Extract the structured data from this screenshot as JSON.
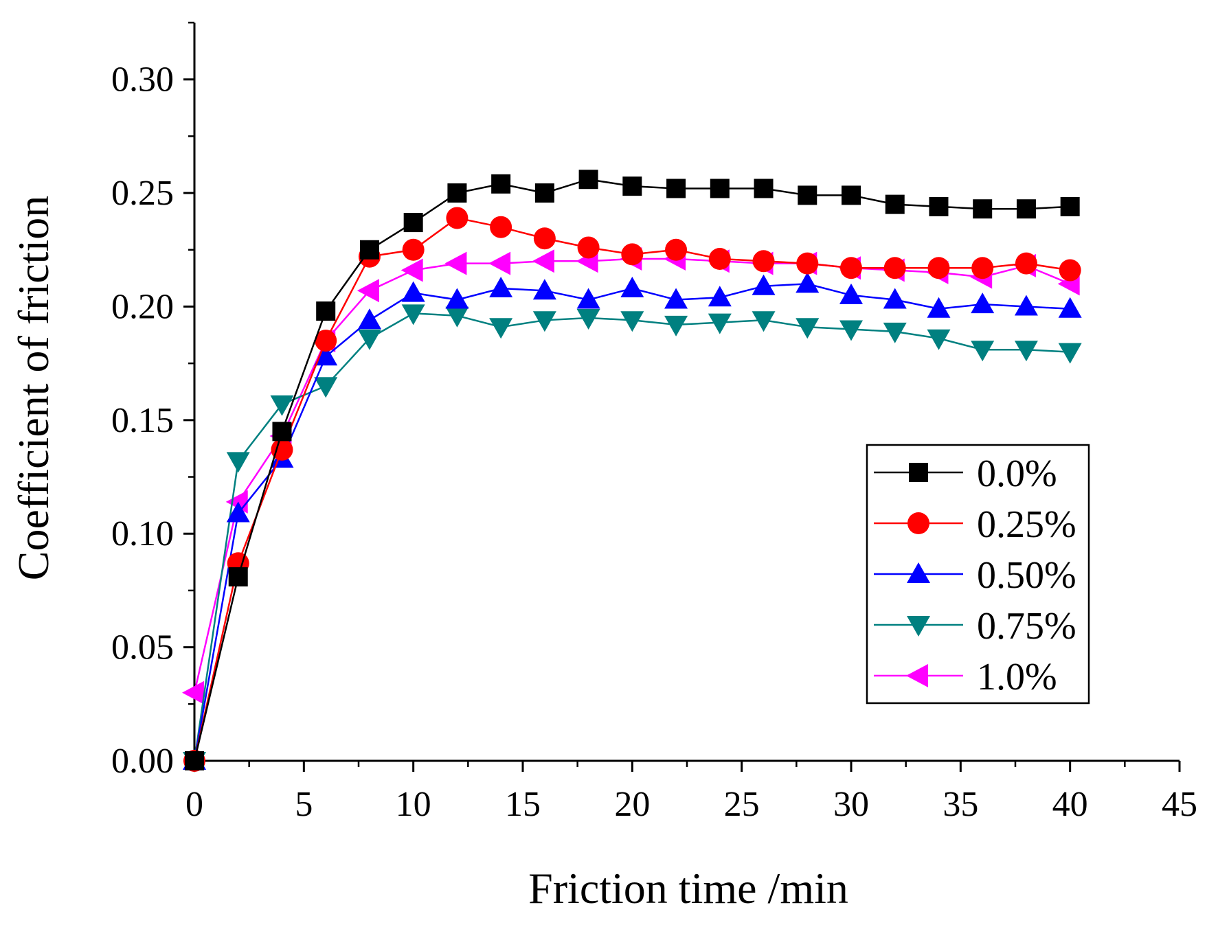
{
  "chart_data": {
    "type": "line",
    "title": "",
    "xlabel": "Friction time /min",
    "ylabel": "Coefficient of friction",
    "xlim": [
      0,
      45
    ],
    "ylim": [
      0,
      0.325
    ],
    "xticks": [
      0,
      5,
      10,
      15,
      20,
      25,
      30,
      35,
      40,
      45
    ],
    "xtick_labels": [
      "0",
      "5",
      "10",
      "15",
      "20",
      "25",
      "30",
      "35",
      "40",
      "45"
    ],
    "yticks": [
      0,
      0.05,
      0.1,
      0.15,
      0.2,
      0.25,
      0.3
    ],
    "ytick_labels": [
      "0.00",
      "0.05",
      "0.10",
      "0.15",
      "0.20",
      "0.25",
      "0.30"
    ],
    "grid": false,
    "legend_position": "center-right",
    "x": [
      0,
      2,
      4,
      6,
      8,
      10,
      12,
      14,
      16,
      18,
      20,
      22,
      24,
      26,
      28,
      30,
      32,
      34,
      36,
      38,
      40
    ],
    "series": [
      {
        "name": "0.0%",
        "color": "#000000",
        "marker": "square",
        "values": [
          0.0,
          0.081,
          0.145,
          0.198,
          0.225,
          0.237,
          0.25,
          0.254,
          0.25,
          0.256,
          0.253,
          0.252,
          0.252,
          0.252,
          0.249,
          0.249,
          0.245,
          0.244,
          0.243,
          0.243,
          0.244
        ]
      },
      {
        "name": "0.25%",
        "color": "#ff0000",
        "marker": "circle",
        "values": [
          0.0,
          0.087,
          0.137,
          0.185,
          0.222,
          0.225,
          0.239,
          0.235,
          0.23,
          0.226,
          0.223,
          0.225,
          0.221,
          0.22,
          0.219,
          0.217,
          0.217,
          0.217,
          0.217,
          0.219,
          0.216
        ]
      },
      {
        "name": "0.50%",
        "color": "#0000ff",
        "marker": "triangle-up",
        "values": [
          0.0,
          0.109,
          0.133,
          0.178,
          0.194,
          0.206,
          0.203,
          0.208,
          0.207,
          0.203,
          0.208,
          0.203,
          0.204,
          0.209,
          0.21,
          0.205,
          0.203,
          0.199,
          0.201,
          0.2,
          0.199
        ]
      },
      {
        "name": "0.75%",
        "color": "#008080",
        "marker": "triangle-down",
        "values": [
          0.0,
          0.132,
          0.157,
          0.165,
          0.186,
          0.197,
          0.196,
          0.191,
          0.194,
          0.195,
          0.194,
          0.192,
          0.193,
          0.194,
          0.191,
          0.19,
          0.189,
          0.186,
          0.181,
          0.181,
          0.18
        ]
      },
      {
        "name": "1.0%",
        "color": "#ff00ff",
        "marker": "triangle-left",
        "values": [
          0.03,
          0.114,
          0.143,
          0.185,
          0.207,
          0.216,
          0.219,
          0.219,
          0.22,
          0.22,
          0.221,
          0.221,
          0.22,
          0.219,
          0.219,
          0.217,
          0.216,
          0.215,
          0.213,
          0.218,
          0.21
        ]
      }
    ]
  }
}
